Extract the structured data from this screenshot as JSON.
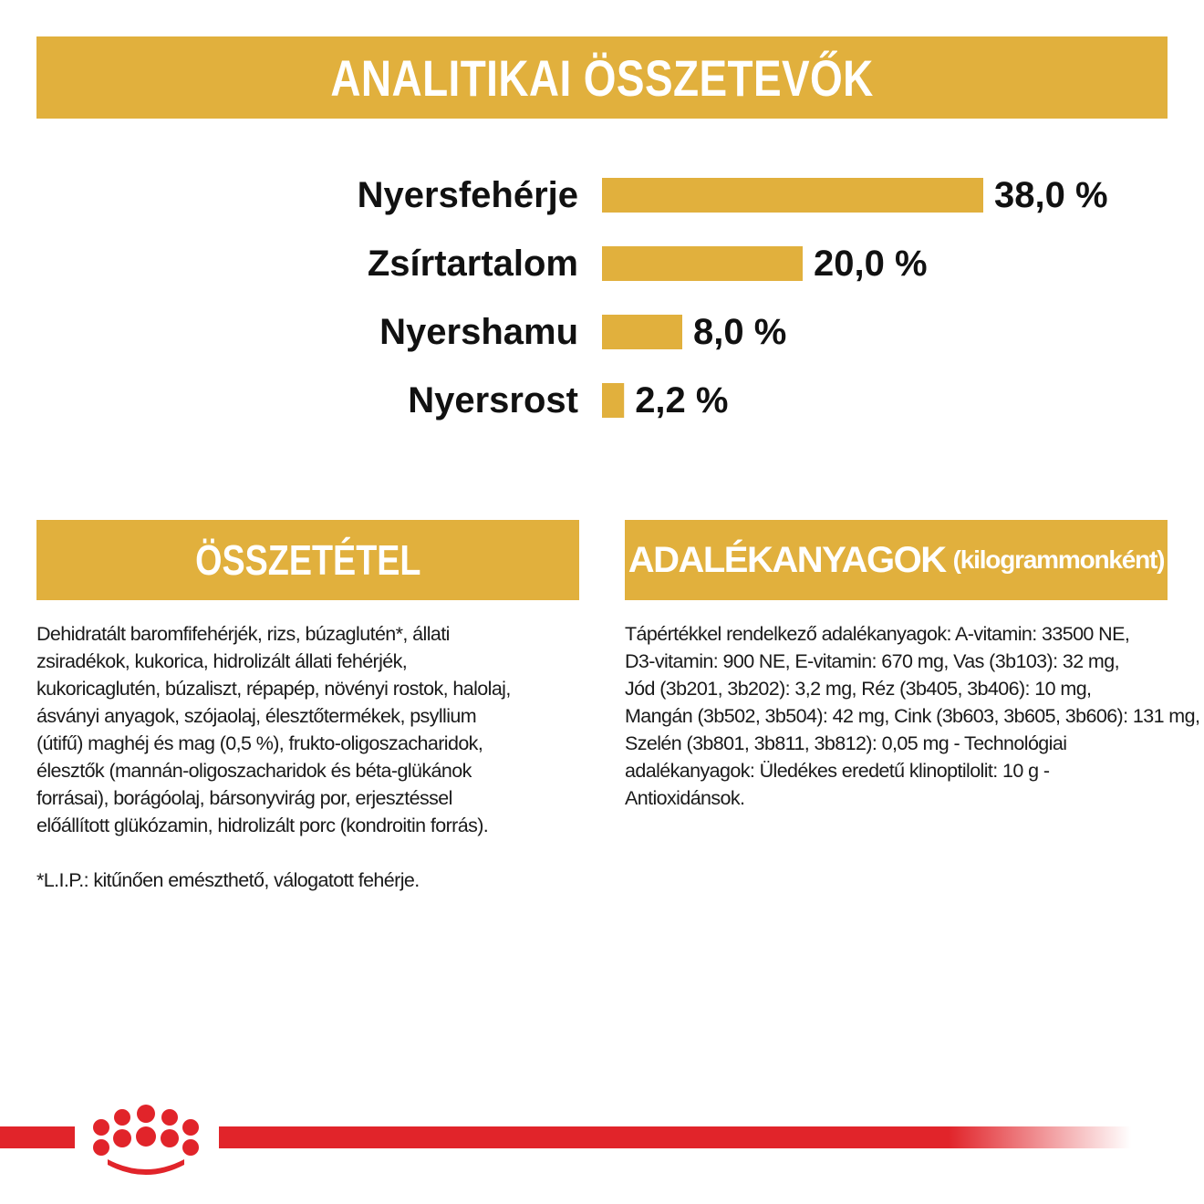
{
  "header": {
    "title": "ANALITIKAI ÖSSZETEVŐK"
  },
  "chart_data": {
    "type": "bar",
    "orientation": "horizontal",
    "categories": [
      "Nyersfehérje",
      "Zsírtartalom",
      "Nyershamu",
      "Nyersrost"
    ],
    "values": [
      38.0,
      20.0,
      8.0,
      2.2
    ],
    "value_labels": [
      "38,0 %",
      "20,0 %",
      "8,0 %",
      "2,2 %"
    ],
    "bar_color": "#e1b03d"
  },
  "composition": {
    "title": "ÖSSZETÉTEL",
    "lines": [
      "Dehidratált baromfifehérjék, rizs, búzaglutén*, állati",
      "zsiradékok, kukorica, hidrolizált állati fehérjék,",
      "kukoricaglutén, búzaliszt, répapép, növényi rostok, halolaj,",
      "ásványi anyagok, szójaolaj, élesztőtermékek, psyllium",
      "(útifű) maghéj és mag (0,5 %), frukto-oligoszacharidok,",
      "élesztők (mannán-oligoszacharidok és béta-glükánok",
      "forrásai), borágóolaj, bársonyvirág por, erjesztéssel",
      "előállított glükózamin, hidrolizált porc (kondroitin forrás)."
    ],
    "note": "*L.I.P.: kitűnően emészthető, válogatott fehérje."
  },
  "additives": {
    "title": "ADALÉKANYAGOK",
    "subtitle": "(kilogrammonként)",
    "lines": [
      "Tápértékkel rendelkező adalékanyagok: A-vitamin: 33500 NE,",
      "D3-vitamin: 900 NE, E-vitamin: 670 mg, Vas (3b103): 32 mg,",
      "Jód (3b201, 3b202): 3,2 mg, Réz (3b405, 3b406): 10 mg,",
      "Mangán (3b502, 3b504): 42 mg, Cink (3b603, 3b605, 3b606): 131 mg,",
      "Szelén (3b801, 3b811, 3b812): 0,05 mg - Technológiai",
      "adalékanyagok: Üledékes eredetű klinoptilolit: 10 g -",
      "Antioxidánsok."
    ]
  },
  "brand": {
    "logo": "royal-canin-crown-logo",
    "accent_color": "#e1242a"
  }
}
